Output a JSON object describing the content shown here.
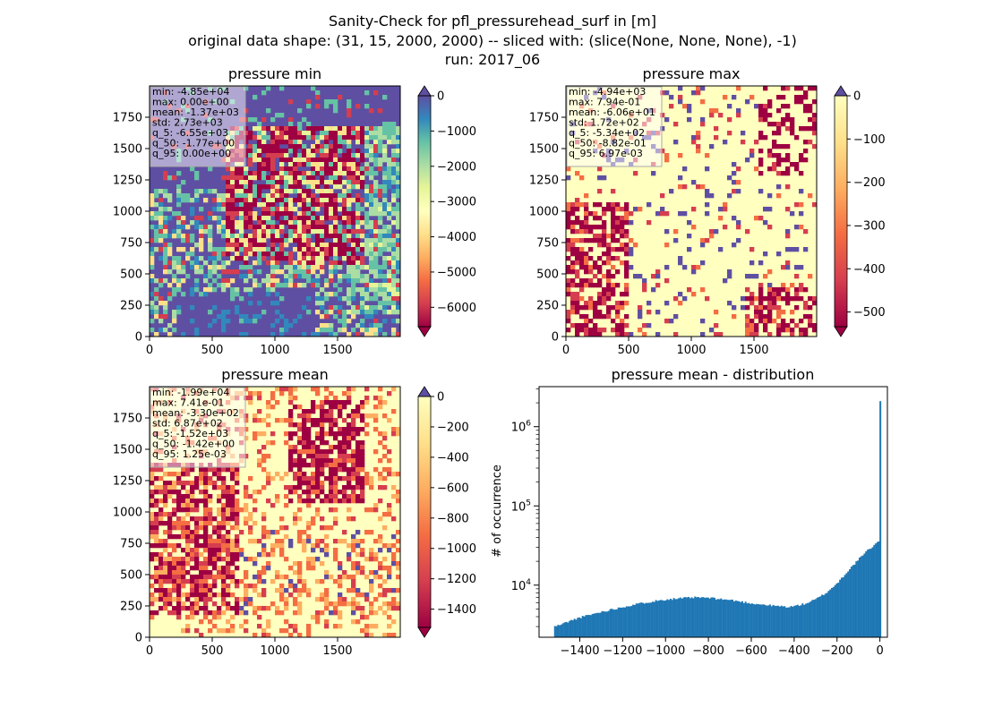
{
  "figure": {
    "suptitle_lines": [
      "Sanity-Check for pfl_pressurehead_surf in [m]",
      "original data shape: (31, 15, 2000, 2000) -- sliced with: (slice(None, None, None), -1)",
      "run: 2017_06"
    ]
  },
  "chart_data": [
    {
      "type": "heatmap",
      "title": "pressure min",
      "x_ticks": [
        0,
        500,
        1000,
        1500
      ],
      "y_ticks": [
        0,
        250,
        500,
        750,
        1000,
        1250,
        1500,
        1750
      ],
      "colorbar": {
        "colormap": "Spectral",
        "ticks": [
          "0",
          "−1000",
          "−2000",
          "−3000",
          "−4000",
          "−5000",
          "−6000"
        ],
        "range": [
          -6550,
          0
        ],
        "extend": "both"
      },
      "stats": [
        "min: -4.85e+04",
        "max: 0.00e+00",
        "mean: -1.37e+03",
        "std: 2.73e+03",
        "q_5: -6.55e+03",
        "q_50: -1.77e+00",
        "q_95: 0.00e+00"
      ]
    },
    {
      "type": "heatmap",
      "title": "pressure max",
      "x_ticks": [
        0,
        500,
        1000,
        1500
      ],
      "y_ticks": [
        0,
        250,
        500,
        750,
        1000,
        1250,
        1500,
        1750
      ],
      "colorbar": {
        "colormap": "Spectral",
        "ticks": [
          "0",
          "−100",
          "−200",
          "−300",
          "−400",
          "−500"
        ],
        "range": [
          -534,
          0
        ],
        "extend": "both"
      },
      "stats": [
        "min: -4.94e+03",
        "max: 7.94e-01",
        "mean: -6.06e+01",
        "std: 1.72e+02",
        "q_5: -5.34e+02",
        "q_50: -8.82e-01",
        "q_95: 6.97e-03"
      ]
    },
    {
      "type": "heatmap",
      "title": "pressure mean",
      "x_ticks": [
        0,
        500,
        1000,
        1500
      ],
      "y_ticks": [
        0,
        250,
        500,
        750,
        1000,
        1250,
        1500,
        1750
      ],
      "colorbar": {
        "colormap": "Spectral",
        "ticks": [
          "0",
          "−200",
          "−400",
          "−600",
          "−800",
          "−1000",
          "−1200",
          "−1400"
        ],
        "range": [
          -1520,
          0
        ],
        "extend": "both"
      },
      "stats": [
        "min: -1.99e+04",
        "max: 7.41e-01",
        "mean: -3.30e+02",
        "std: 6.87e+02",
        "q_5: -1.52e+03",
        "q_50: -1.42e+00",
        "q_95: 1.25e-03"
      ]
    },
    {
      "type": "bar",
      "title": "pressure mean - distribution",
      "ylabel": "# of occurrence",
      "yscale": "log",
      "ylim": [
        2200,
        3200000
      ],
      "xlim": [
        -1590,
        35
      ],
      "x_ticks": [
        "−1400",
        "−1200",
        "−1000",
        "−800",
        "−600",
        "−400",
        "−200",
        "0"
      ],
      "x_tick_values": [
        -1400,
        -1200,
        -1000,
        -800,
        -600,
        -400,
        -200,
        0
      ],
      "y_ticks": [
        "10^4",
        "10^5",
        "10^6"
      ],
      "y_tick_values": [
        10000,
        100000,
        1000000
      ],
      "color": "#1f77b4",
      "profile": [
        [
          -1520,
          3000
        ],
        [
          -1500,
          3100
        ],
        [
          -1450,
          3500
        ],
        [
          -1400,
          3900
        ],
        [
          -1300,
          4600
        ],
        [
          -1200,
          5300
        ],
        [
          -1100,
          6000
        ],
        [
          -1000,
          6600
        ],
        [
          -900,
          6900
        ],
        [
          -850,
          7000
        ],
        [
          -800,
          6900
        ],
        [
          -700,
          6500
        ],
        [
          -600,
          5900
        ],
        [
          -500,
          5500
        ],
        [
          -420,
          5300
        ],
        [
          -350,
          5800
        ],
        [
          -300,
          6600
        ],
        [
          -250,
          8000
        ],
        [
          -200,
          10500
        ],
        [
          -150,
          15000
        ],
        [
          -100,
          21000
        ],
        [
          -60,
          27000
        ],
        [
          -20,
          33000
        ],
        [
          -10,
          35000
        ],
        [
          -5,
          36500
        ]
      ],
      "spike": {
        "x": 0,
        "value": 2100000
      }
    }
  ]
}
